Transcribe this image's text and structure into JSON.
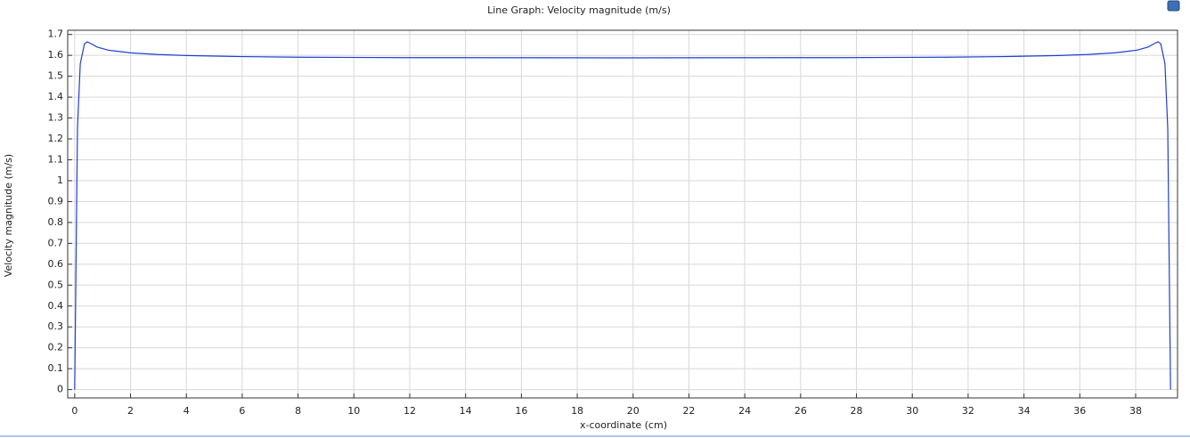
{
  "chart_data": {
    "type": "line",
    "title": "Line Graph: Velocity magnitude (m/s)",
    "x_label": "x-coordinate (cm)",
    "y_label": "Velocity magnitude (m/s)",
    "x": [
      0,
      0.1,
      0.2,
      0.35,
      0.45,
      0.6,
      0.8,
      1.2,
      2,
      3,
      4,
      6,
      8,
      12,
      19.6,
      27.25,
      31.25,
      33.25,
      35.25,
      36.25,
      37.25,
      38.05,
      38.45,
      38.65,
      38.8,
      38.9,
      39.05,
      39.15,
      39.25
    ],
    "series": [
      {
        "name": "Velocity magnitude",
        "color": "#1f3fd1",
        "values": [
          0,
          1.25,
          1.56,
          1.655,
          1.665,
          1.655,
          1.64,
          1.625,
          1.612,
          1.604,
          1.599,
          1.594,
          1.591,
          1.589,
          1.588,
          1.589,
          1.591,
          1.594,
          1.599,
          1.604,
          1.612,
          1.625,
          1.64,
          1.655,
          1.665,
          1.655,
          1.56,
          1.25,
          0
        ]
      }
    ],
    "xlim": [
      -0.25,
      39.5
    ],
    "ylim": [
      -0.04,
      1.72
    ],
    "xticks": [
      0,
      2,
      4,
      6,
      8,
      10,
      12,
      14,
      16,
      18,
      20,
      22,
      24,
      26,
      28,
      30,
      32,
      34,
      36,
      38
    ],
    "yticks": [
      0,
      0.1,
      0.2,
      0.3,
      0.4,
      0.5,
      0.6,
      0.7,
      0.8,
      0.9,
      1,
      1.1,
      1.2,
      1.3,
      1.4,
      1.5,
      1.6,
      1.7
    ],
    "grid": true
  }
}
